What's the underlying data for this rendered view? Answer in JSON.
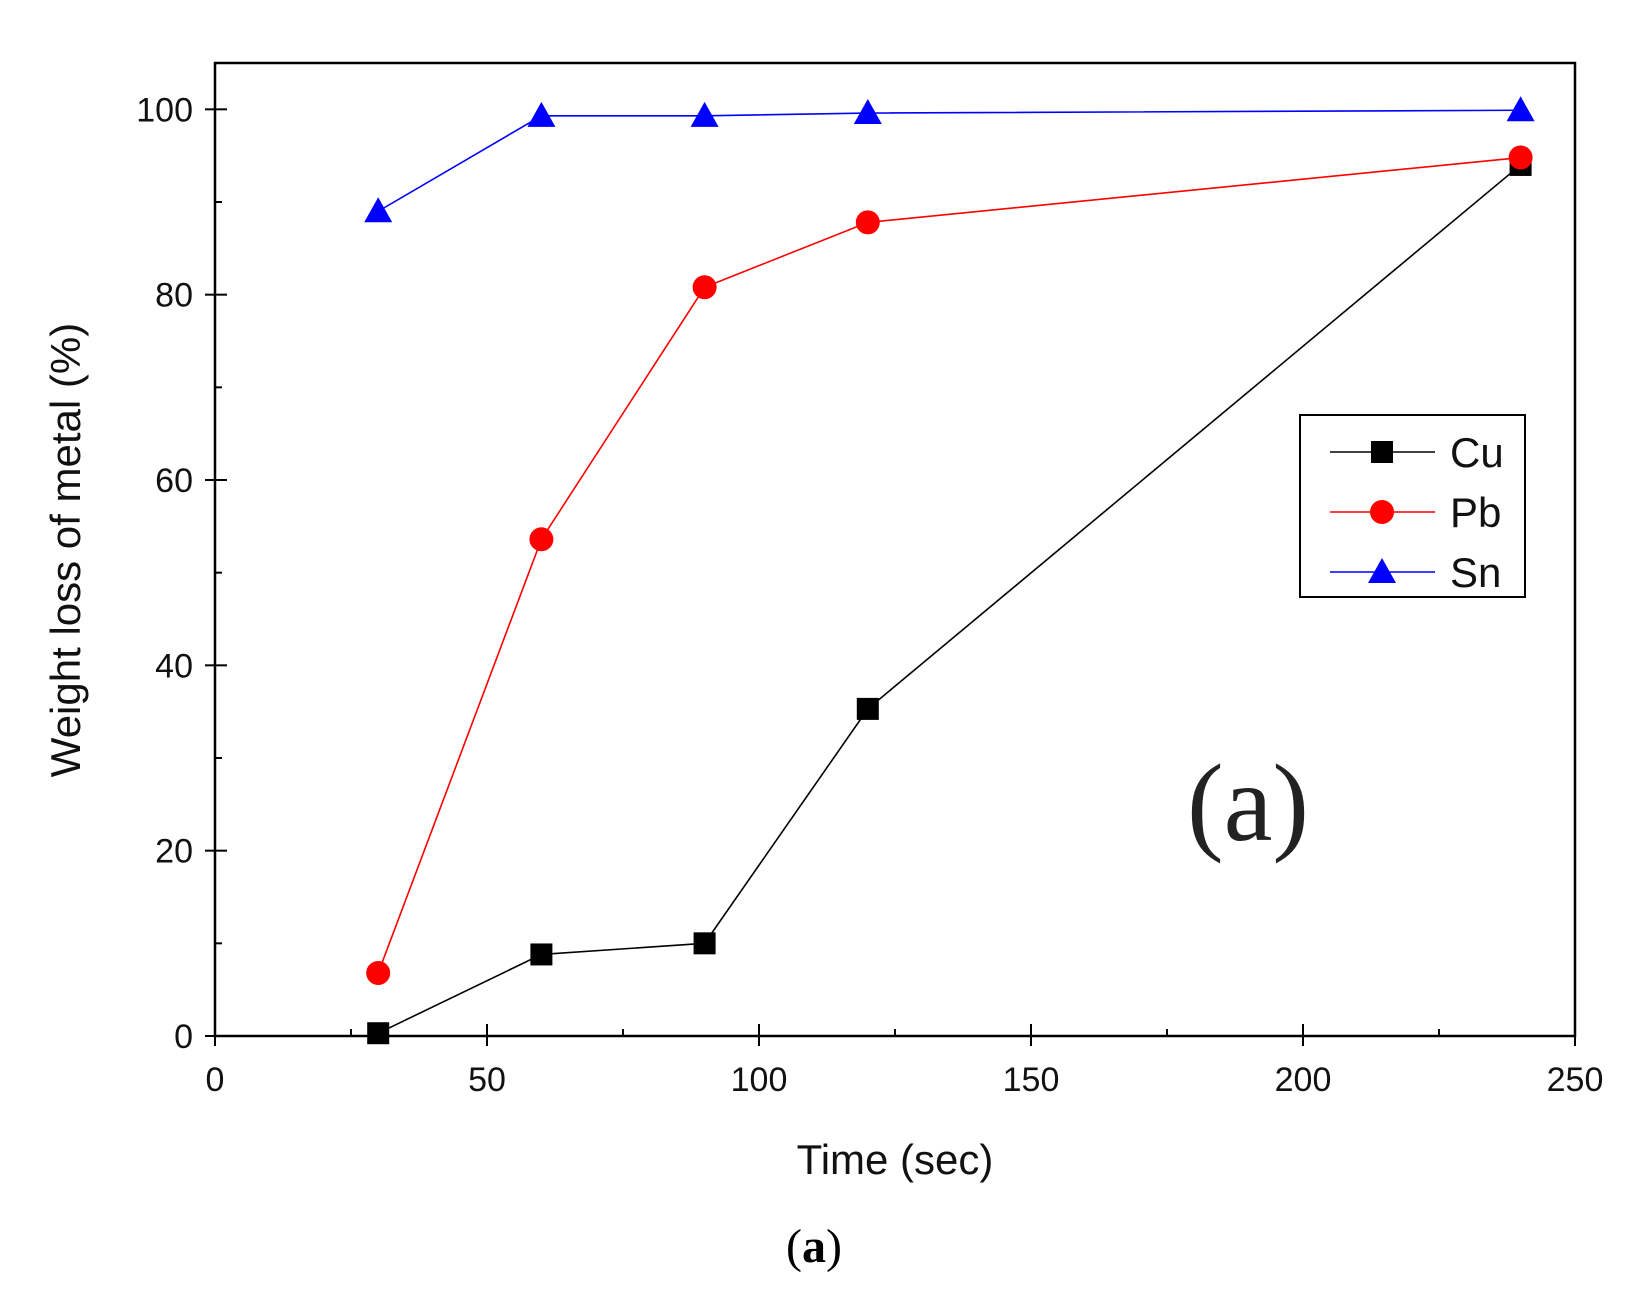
{
  "chart_data": {
    "type": "line",
    "xlabel": "Time (sec)",
    "ylabel": "Weight loss of metal (%)",
    "xlim": [
      0,
      250
    ],
    "ylim": [
      0,
      105
    ],
    "x_ticks": [
      "0",
      "50",
      "100",
      "150",
      "200",
      "250"
    ],
    "y_ticks": [
      "0",
      "20",
      "40",
      "60",
      "80",
      "100"
    ],
    "x_tick_values": [
      0,
      50,
      100,
      150,
      200,
      250
    ],
    "y_tick_values": [
      0,
      20,
      40,
      60,
      80,
      100
    ],
    "x_minor_values": [
      25,
      75,
      125,
      175,
      225
    ],
    "y_minor_values": [
      10,
      30,
      50,
      70,
      90
    ],
    "grid": false,
    "legend_position": "center-right",
    "annotation": "(a)",
    "series": [
      {
        "name": "Cu",
        "marker": "square",
        "color": "#000000",
        "x": [
          30,
          60,
          90,
          120,
          240
        ],
        "y": [
          0.3,
          8.8,
          10.0,
          35.3,
          94.0
        ]
      },
      {
        "name": "Pb",
        "marker": "circle",
        "color": "#ff0000",
        "x": [
          30,
          60,
          90,
          120,
          240
        ],
        "y": [
          6.8,
          53.6,
          80.8,
          87.8,
          94.8
        ]
      },
      {
        "name": "Sn",
        "marker": "triangle",
        "color": "#0000ff",
        "x": [
          30,
          60,
          90,
          120,
          240
        ],
        "y": [
          89.0,
          99.3,
          99.3,
          99.6,
          99.9
        ]
      }
    ]
  },
  "caption": {
    "open": "(",
    "label": "a",
    "close": ")"
  }
}
